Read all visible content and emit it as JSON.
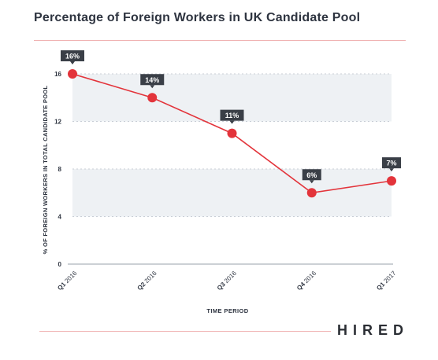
{
  "page": {
    "brand": "HIRED"
  },
  "chart_data": {
    "type": "line",
    "title": "Percentage of Foreign Workers in UK Candidate Pool",
    "xlabel": "TIME PERIOD",
    "ylabel": "% OF FOREIGN WORKERS IN TOTAL CANDIDATE POOL",
    "categories": [
      "Q1 2016",
      "Q2 2016",
      "Q3 2016",
      "Q4 2016",
      "Q1 2017"
    ],
    "series": [
      {
        "values": [
          16,
          14,
          11,
          6,
          7
        ],
        "labels": [
          "16%",
          "14%",
          "11%",
          "6%",
          "7%"
        ]
      }
    ],
    "ylim": [
      0,
      16
    ],
    "yticks": [
      0,
      4,
      8,
      12,
      16
    ],
    "bands": [
      [
        4,
        8
      ],
      [
        12,
        16
      ]
    ],
    "colors": {
      "line": "#e3343b",
      "marker": "#e3343b",
      "label_bg": "#3a3f47",
      "band": "#eef1f4"
    }
  }
}
